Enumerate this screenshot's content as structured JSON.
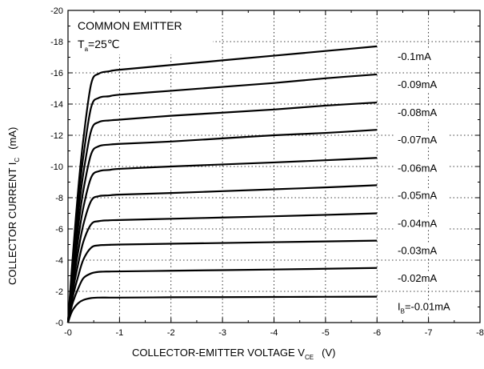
{
  "chart_data": {
    "type": "line",
    "title": "COMMON EMITTER",
    "condition": {
      "main": "T",
      "sub": "a",
      "rest": "=25℃"
    },
    "xlabel": {
      "main": "COLLECTOR-EMITTER VOLTAGE   V",
      "sub": "CE",
      "unit": "(V)"
    },
    "ylabel": {
      "main": "COLLECTOR CURRENT   I",
      "sub": "C",
      "unit": "(mA)"
    },
    "xlim": [
      0,
      -8
    ],
    "ylim": [
      0,
      -20
    ],
    "x_ticks": [
      0,
      -1,
      -2,
      -3,
      -4,
      -5,
      -6,
      -7,
      -8
    ],
    "x_tick_labels": [
      "-0",
      "-1",
      "-2",
      "-3",
      "-4",
      "-5",
      "-6",
      "-7",
      "-8"
    ],
    "y_ticks": [
      0,
      -2,
      -4,
      -6,
      -8,
      -10,
      -12,
      -14,
      -16,
      -18,
      -20
    ],
    "y_tick_labels": [
      "-0",
      "-2",
      "-4",
      "-6",
      "-8",
      "-10",
      "-12",
      "-14",
      "-16",
      "-18",
      "-20"
    ],
    "grid": "dotted",
    "series": [
      {
        "label": "-0.01mA",
        "prefix": "I",
        "prefix_sub": "B",
        "x": [
          0,
          -0.05,
          -0.1,
          -0.2,
          -0.3,
          -0.45,
          -0.6,
          -0.8,
          -1,
          -2,
          -3,
          -4,
          -5,
          -6
        ],
        "y": [
          0,
          -0.5,
          -0.85,
          -1.25,
          -1.45,
          -1.57,
          -1.6,
          -1.6,
          -1.6,
          -1.62,
          -1.63,
          -1.64,
          -1.65,
          -1.66
        ]
      },
      {
        "label": "-0.02mA",
        "x": [
          0,
          -0.05,
          -0.1,
          -0.2,
          -0.3,
          -0.45,
          -0.6,
          -0.8,
          -1,
          -2,
          -3,
          -4,
          -5,
          -6
        ],
        "y": [
          0,
          -0.75,
          -1.35,
          -2.2,
          -2.85,
          -3.15,
          -3.25,
          -3.27,
          -3.28,
          -3.32,
          -3.36,
          -3.4,
          -3.45,
          -3.5
        ]
      },
      {
        "label": "-0.03mA",
        "x": [
          0,
          -0.05,
          -0.1,
          -0.2,
          -0.3,
          -0.45,
          -0.6,
          -0.8,
          -1,
          -2,
          -3,
          -4,
          -5,
          -6
        ],
        "y": [
          0,
          -0.95,
          -1.75,
          -3.0,
          -4.05,
          -4.8,
          -4.95,
          -4.98,
          -5.0,
          -5.05,
          -5.1,
          -5.15,
          -5.2,
          -5.25
        ]
      },
      {
        "label": "-0.04mA",
        "x": [
          0,
          -0.05,
          -0.1,
          -0.2,
          -0.3,
          -0.45,
          -0.6,
          -0.8,
          -1,
          -2,
          -3,
          -4,
          -5,
          -6
        ],
        "y": [
          0,
          -1.15,
          -2.15,
          -3.8,
          -5.2,
          -6.3,
          -6.5,
          -6.55,
          -6.57,
          -6.65,
          -6.73,
          -6.81,
          -6.9,
          -7.0
        ]
      },
      {
        "label": "-0.05mA",
        "x": [
          0,
          -0.05,
          -0.1,
          -0.2,
          -0.3,
          -0.45,
          -0.6,
          -0.8,
          -1,
          -2,
          -3,
          -4,
          -5,
          -6
        ],
        "y": [
          0,
          -1.35,
          -2.55,
          -4.6,
          -6.3,
          -7.8,
          -8.1,
          -8.15,
          -8.2,
          -8.3,
          -8.42,
          -8.54,
          -8.66,
          -8.8
        ]
      },
      {
        "label": "-0.06mA",
        "x": [
          0,
          -0.05,
          -0.1,
          -0.2,
          -0.3,
          -0.45,
          -0.6,
          -0.8,
          -1,
          -2,
          -3,
          -4,
          -5,
          -6
        ],
        "y": [
          0,
          -1.55,
          -2.95,
          -5.4,
          -7.4,
          -9.3,
          -9.7,
          -9.78,
          -9.85,
          -10.0,
          -10.13,
          -10.26,
          -10.4,
          -10.55
        ]
      },
      {
        "label": "-0.07mA",
        "x": [
          0,
          -0.05,
          -0.1,
          -0.2,
          -0.3,
          -0.45,
          -0.6,
          -0.8,
          -1,
          -2,
          -3,
          -4,
          -5,
          -6
        ],
        "y": [
          0,
          -1.75,
          -3.35,
          -6.2,
          -8.5,
          -10.8,
          -11.3,
          -11.4,
          -11.45,
          -11.6,
          -11.8,
          -12.0,
          -12.15,
          -12.35
        ]
      },
      {
        "label": "-0.08mA",
        "x": [
          0,
          -0.05,
          -0.1,
          -0.2,
          -0.3,
          -0.45,
          -0.6,
          -0.8,
          -1,
          -2,
          -3,
          -4,
          -5,
          -6
        ],
        "y": [
          0,
          -1.95,
          -3.75,
          -7.0,
          -9.6,
          -12.3,
          -12.85,
          -12.95,
          -13.0,
          -13.25,
          -13.45,
          -13.65,
          -13.9,
          -14.1
        ]
      },
      {
        "label": "-0.09mA",
        "x": [
          0,
          -0.05,
          -0.1,
          -0.2,
          -0.3,
          -0.45,
          -0.6,
          -0.8,
          -1,
          -2,
          -3,
          -4,
          -5,
          -6
        ],
        "y": [
          0,
          -2.15,
          -4.15,
          -7.8,
          -10.7,
          -13.8,
          -14.4,
          -14.5,
          -14.6,
          -14.85,
          -15.1,
          -15.35,
          -15.65,
          -15.9
        ]
      },
      {
        "label": "-0.1mA",
        "x": [
          0,
          -0.05,
          -0.1,
          -0.2,
          -0.3,
          -0.45,
          -0.6,
          -0.8,
          -1,
          -2,
          -3,
          -4,
          -5,
          -6
        ],
        "y": [
          0,
          -2.35,
          -4.55,
          -8.6,
          -11.8,
          -15.3,
          -15.95,
          -16.1,
          -16.2,
          -16.5,
          -16.8,
          -17.1,
          -17.4,
          -17.7
        ]
      }
    ]
  }
}
